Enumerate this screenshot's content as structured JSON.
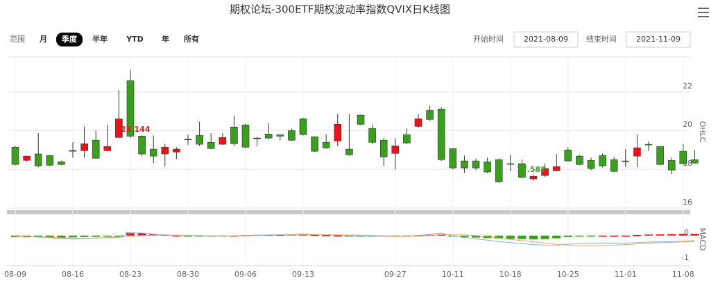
{
  "chart_data": [
    {
      "type": "candlestick",
      "title": "期权论坛-300ETF期权波动率指数QVIX日K线图",
      "axis_label": "OHLC",
      "categories": [
        "08-09",
        null,
        null,
        null,
        null,
        "08-16",
        null,
        null,
        null,
        null,
        "08-23",
        null,
        null,
        null,
        null,
        "08-30",
        null,
        null,
        null,
        null,
        "09-06",
        null,
        null,
        null,
        null,
        "09-13",
        null,
        null,
        null,
        null,
        null,
        null,
        null,
        "09-27",
        null,
        null,
        null,
        null,
        "10-11",
        null,
        null,
        null,
        null,
        "10-18",
        null,
        null,
        null,
        null,
        "10-25",
        null,
        null,
        null,
        null,
        "11-01",
        null,
        null,
        null,
        null,
        "11-08",
        null
      ],
      "open": [
        19.14,
        18.46,
        18.79,
        18.71,
        18.39,
        18.98,
        18.96,
        19.5,
        18.96,
        19.64,
        22.57,
        19.71,
        19.04,
        18.79,
        18.89,
        19.54,
        19.75,
        19.39,
        19.29,
        20.18,
        20.29,
        19.6,
        19.82,
        19.79,
        20.0,
        20.61,
        19.68,
        19.39,
        19.46,
        19.04,
        20.79,
        20.11,
        19.5,
        18.82,
        19.79,
        20.21,
        21.04,
        21.11,
        19.07,
        18.43,
        18.43,
        18.39,
        18.5,
        18.29,
        18.29,
        17.5,
        17.68,
        17.93,
        19.0,
        18.68,
        18.46,
        18.71,
        18.5,
        18.43,
        18.68,
        19.29,
        19.18,
        18.46,
        18.93,
        18.5
      ],
      "high": [
        19.2,
        18.7,
        19.86,
        18.75,
        18.45,
        19.4,
        20.2,
        20.0,
        20.3,
        22.07,
        23.144,
        19.75,
        19.75,
        19.32,
        19.14,
        19.79,
        20.46,
        19.86,
        19.86,
        20.75,
        20.36,
        19.68,
        20.39,
        19.8,
        20.1,
        20.65,
        19.7,
        19.79,
        20.86,
        20.86,
        20.82,
        20.29,
        19.61,
        19.61,
        20.11,
        20.86,
        21.29,
        21.21,
        19.1,
        18.71,
        18.55,
        18.6,
        18.55,
        18.75,
        18.5,
        17.7,
        18.3,
        18.79,
        19.14,
        18.75,
        18.6,
        18.82,
        18.64,
        19.04,
        19.79,
        19.43,
        19.2,
        18.6,
        19.32,
        19.0
      ],
      "low": [
        18.2,
        18.4,
        18.1,
        18.15,
        18.2,
        18.6,
        18.6,
        18.55,
        18.95,
        19.6,
        19.6,
        18.68,
        18.32,
        18.14,
        18.54,
        19.25,
        19.2,
        19.04,
        19.25,
        19.21,
        19.1,
        19.18,
        19.55,
        19.5,
        19.45,
        19.75,
        18.9,
        19.05,
        19.18,
        18.7,
        20.29,
        19.3,
        18.18,
        18.0,
        19.3,
        20.14,
        20.5,
        18.43,
        18.0,
        17.82,
        17.95,
        17.8,
        17.3,
        17.93,
        17.55,
        17.4,
        17.6,
        17.9,
        18.4,
        18.2,
        17.95,
        18.1,
        17.85,
        18.14,
        18.11,
        18.96,
        18.2,
        17.75,
        18.25,
        18.3
      ],
      "close": [
        18.25,
        18.68,
        18.18,
        18.21,
        18.25,
        18.93,
        19.32,
        18.57,
        19.18,
        20.6,
        19.71,
        18.79,
        18.68,
        19.14,
        19.04,
        19.55,
        19.29,
        19.07,
        19.64,
        19.32,
        19.14,
        19.61,
        19.61,
        19.71,
        19.5,
        19.79,
        18.93,
        19.11,
        20.32,
        18.75,
        20.32,
        19.39,
        18.64,
        19.21,
        19.36,
        20.61,
        20.57,
        18.5,
        18.07,
        18.07,
        18.07,
        17.86,
        17.36,
        18.28,
        17.582,
        17.64,
        18.04,
        18.14,
        18.43,
        18.25,
        18.04,
        18.18,
        17.89,
        18.42,
        19.11,
        19.28,
        18.25,
        17.96,
        18.29,
        18.32
      ],
      "up_color": "#e8141a",
      "down_color": "#3a9e1e",
      "max_label": {
        "index": 10,
        "value": 23.144
      },
      "min_label": {
        "index": 44,
        "value": 17.582
      },
      "ylim": [
        16,
        23.8
      ],
      "yticks": [
        16,
        18,
        20,
        22
      ],
      "grid": true
    },
    {
      "type": "macd",
      "axis_label": "MACD",
      "histogram": [
        -0.06,
        -0.07,
        -0.07,
        -0.07,
        -0.08,
        -0.07,
        -0.06,
        -0.05,
        -0.04,
        -0.02,
        0.12,
        0.1,
        0.06,
        0.03,
        0.01,
        -0.01,
        -0.02,
        -0.02,
        -0.01,
        0.0,
        0.02,
        0.03,
        0.03,
        0.03,
        0.04,
        0.05,
        0.03,
        0.02,
        0.01,
        -0.03,
        -0.03,
        -0.02,
        -0.03,
        -0.02,
        -0.01,
        0.01,
        0.03,
        0.05,
        -0.04,
        -0.06,
        -0.08,
        -0.1,
        -0.12,
        -0.13,
        -0.14,
        -0.15,
        -0.14,
        -0.11,
        -0.06,
        -0.03,
        -0.01,
        0.0,
        0.0,
        0.0,
        0.02,
        0.04,
        0.05,
        0.06,
        0.07,
        0.07
      ],
      "series": [
        {
          "color": "#7cb5ec",
          "values": [
            0.0,
            -0.03,
            -0.06,
            -0.09,
            -0.12,
            -0.13,
            -0.12,
            -0.1,
            -0.08,
            -0.05,
            0.1,
            0.1,
            0.06,
            0.03,
            0.01,
            0.0,
            -0.01,
            -0.02,
            -0.02,
            -0.01,
            0.0,
            0.02,
            0.03,
            0.04,
            0.05,
            0.07,
            0.05,
            0.03,
            0.03,
            -0.01,
            -0.01,
            -0.01,
            -0.03,
            -0.04,
            -0.03,
            0.0,
            0.05,
            0.1,
            -0.02,
            -0.08,
            -0.13,
            -0.18,
            -0.24,
            -0.28,
            -0.32,
            -0.36,
            -0.38,
            -0.38,
            -0.34,
            -0.32,
            -0.31,
            -0.3,
            -0.3,
            -0.3,
            -0.28,
            -0.26,
            -0.25,
            -0.24,
            -0.22,
            -0.2
          ]
        },
        {
          "color": "#f7a35c",
          "values": [
            -0.02,
            -0.03,
            -0.05,
            -0.07,
            -0.09,
            -0.1,
            -0.11,
            -0.1,
            -0.09,
            -0.08,
            -0.02,
            0.0,
            0.01,
            0.01,
            0.01,
            0.0,
            0.0,
            -0.01,
            -0.01,
            -0.01,
            -0.01,
            0.0,
            0.01,
            0.02,
            0.02,
            0.03,
            0.03,
            0.03,
            0.03,
            0.02,
            0.01,
            0.0,
            -0.01,
            -0.02,
            -0.02,
            -0.02,
            0.0,
            0.04,
            0.05,
            0.03,
            0.0,
            -0.05,
            -0.1,
            -0.15,
            -0.2,
            -0.25,
            -0.3,
            -0.35,
            -0.38,
            -0.4,
            -0.4,
            -0.4,
            -0.38,
            -0.36,
            -0.33,
            -0.3,
            -0.28,
            -0.27,
            -0.25,
            -0.23
          ]
        }
      ],
      "up_color": "#e8141a",
      "down_color": "#3a9e1e",
      "ylim": [
        -1.2,
        0.6
      ],
      "yticks": [
        -1,
        0
      ]
    }
  ],
  "controls": {
    "range_label": "范围",
    "ranges": [
      "月",
      "季度",
      "半年",
      "YTD",
      "年",
      "所有"
    ],
    "selected": 1,
    "start_label": "开始时间",
    "start": "2021-08-09",
    "end_label": "结束时间",
    "end": "2021-11-09"
  }
}
